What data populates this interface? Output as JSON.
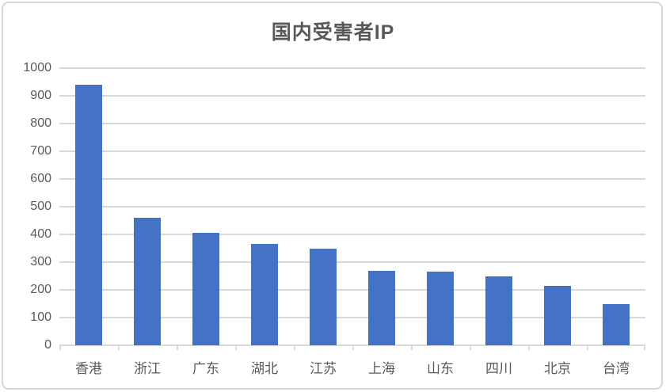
{
  "window": {
    "background": "#FFFFFF",
    "border_color": "#D6D6D6"
  },
  "chart_data": {
    "type": "bar",
    "title": "国内受害者IP",
    "categories": [
      "香港",
      "浙江",
      "广东",
      "湖北",
      "江苏",
      "上海",
      "山东",
      "四川",
      "北京",
      "台湾"
    ],
    "values": [
      940,
      460,
      405,
      365,
      350,
      270,
      265,
      250,
      215,
      150
    ],
    "xlabel": "",
    "ylabel": "",
    "ylim": [
      0,
      1000
    ],
    "yticks": [
      0,
      100,
      200,
      300,
      400,
      500,
      600,
      700,
      800,
      900,
      1000
    ],
    "grid": "horizontal",
    "legend_position": "none",
    "colors": {
      "bar": "#4472C4",
      "grid": "#D9D9D9",
      "text": "#595959",
      "border": "#D6D6D6"
    }
  }
}
